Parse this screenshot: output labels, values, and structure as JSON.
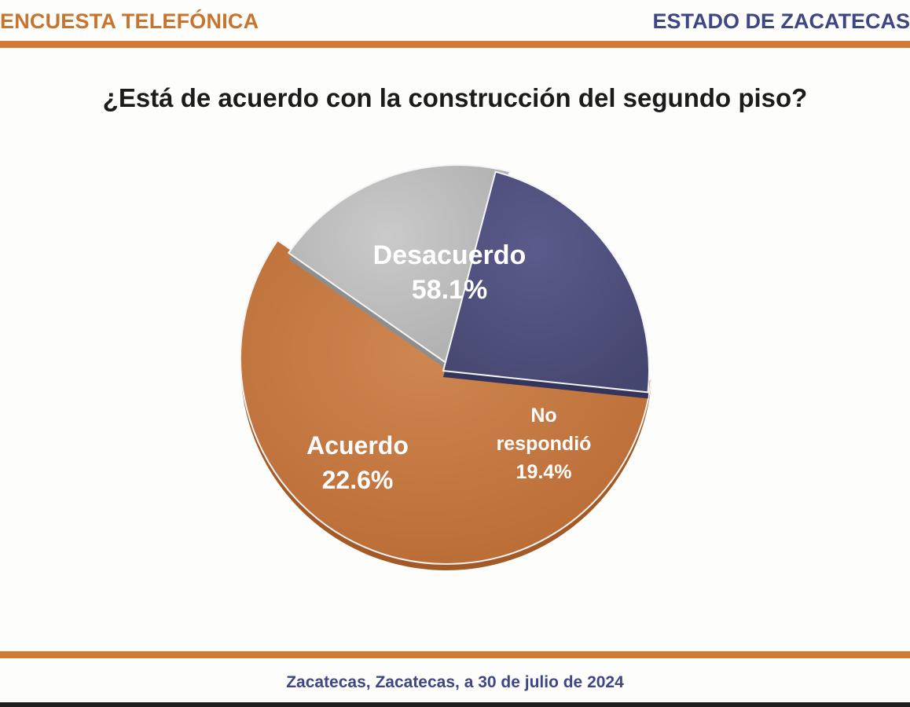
{
  "header": {
    "left_title": "ENCUESTA TELEFÓNICA",
    "right_title": "ESTADO DE ZACATECAS"
  },
  "footer": {
    "text": "Zacatecas, Zacatecas, a 30 de julio de 2024"
  },
  "colors": {
    "accent": "#d27b34",
    "brand": "#3f4684",
    "desacuerdo": "#c5773f",
    "acuerdo": "#4f507f",
    "no_respondio": "#bdbdbd"
  },
  "chart_data": {
    "type": "pie",
    "title": "¿Está de acuerdo con la construcción del segundo piso?",
    "slices": [
      {
        "label": "Desacuerdo",
        "value": 58.1,
        "display": "58.1%",
        "color": "#c5773f",
        "shade": "#a45a26"
      },
      {
        "label": "No respondió",
        "value": 19.4,
        "display": "19.4%",
        "color": "#bdbdbd",
        "shade": "#8e8e8e"
      },
      {
        "label": "Acuerdo",
        "value": 22.6,
        "display": "22.6%",
        "color": "#4f507f",
        "shade": "#34355c"
      }
    ]
  }
}
